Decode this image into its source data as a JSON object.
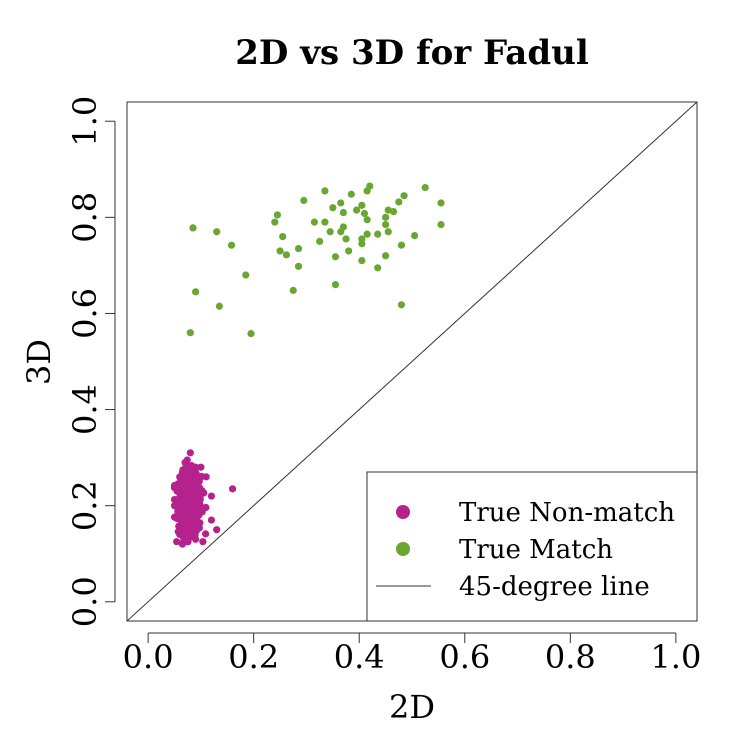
{
  "chart_data": {
    "type": "scatter",
    "title": "2D vs 3D for Fadul",
    "xlabel": "2D",
    "ylabel": "3D",
    "xlim": [
      -0.04,
      1.04
    ],
    "ylim": [
      -0.04,
      1.04
    ],
    "xticks": [
      0.0,
      0.2,
      0.4,
      0.6,
      0.8,
      1.0
    ],
    "yticks": [
      0.0,
      0.2,
      0.4,
      0.6,
      0.8,
      1.0
    ],
    "xtick_labels": [
      "0.0",
      "0.2",
      "0.4",
      "0.6",
      "0.8",
      "1.0"
    ],
    "ytick_labels": [
      "0.0",
      "0.2",
      "0.4",
      "0.6",
      "0.8",
      "1.0"
    ],
    "grid": false,
    "legend_position": "bottom-right",
    "reference_line": {
      "name": "45-degree line",
      "slope": 1,
      "intercept": 0,
      "color": "#333333"
    },
    "series": [
      {
        "name": "True Non-match",
        "color": "#b5228e",
        "cluster_description": "dense cluster of ~500 points",
        "points": [
          [
            0.08,
            0.31
          ],
          [
            0.07,
            0.29
          ],
          [
            0.09,
            0.28
          ],
          [
            0.1,
            0.28
          ],
          [
            0.065,
            0.27
          ],
          [
            0.11,
            0.26
          ],
          [
            0.12,
            0.22
          ],
          [
            0.16,
            0.235
          ],
          [
            0.13,
            0.15
          ],
          [
            0.065,
            0.12
          ],
          [
            0.06,
            0.14
          ],
          [
            0.12,
            0.17
          ],
          [
            0.055,
            0.23
          ],
          [
            0.05,
            0.2
          ],
          [
            0.09,
            0.13
          ],
          [
            0.075,
            0.25
          ],
          [
            0.095,
            0.24
          ],
          [
            0.06,
            0.26
          ]
        ],
        "dense_region": {
          "x_mean": 0.079,
          "x_sd": 0.011,
          "y_mean": 0.205,
          "y_sd": 0.032,
          "count": 480
        }
      },
      {
        "name": "True Match",
        "color": "#6aa632",
        "points": [
          [
            0.42,
            0.865
          ],
          [
            0.335,
            0.855
          ],
          [
            0.415,
            0.855
          ],
          [
            0.525,
            0.862
          ],
          [
            0.485,
            0.845
          ],
          [
            0.385,
            0.848
          ],
          [
            0.555,
            0.83
          ],
          [
            0.295,
            0.835
          ],
          [
            0.365,
            0.83
          ],
          [
            0.475,
            0.832
          ],
          [
            0.405,
            0.825
          ],
          [
            0.35,
            0.82
          ],
          [
            0.395,
            0.815
          ],
          [
            0.455,
            0.815
          ],
          [
            0.465,
            0.812
          ],
          [
            0.37,
            0.81
          ],
          [
            0.41,
            0.808
          ],
          [
            0.245,
            0.805
          ],
          [
            0.45,
            0.8
          ],
          [
            0.24,
            0.79
          ],
          [
            0.315,
            0.79
          ],
          [
            0.335,
            0.79
          ],
          [
            0.415,
            0.795
          ],
          [
            0.45,
            0.785
          ],
          [
            0.555,
            0.785
          ],
          [
            0.085,
            0.778
          ],
          [
            0.37,
            0.78
          ],
          [
            0.455,
            0.77
          ],
          [
            0.13,
            0.77
          ],
          [
            0.345,
            0.77
          ],
          [
            0.365,
            0.77
          ],
          [
            0.415,
            0.765
          ],
          [
            0.435,
            0.765
          ],
          [
            0.505,
            0.762
          ],
          [
            0.255,
            0.76
          ],
          [
            0.375,
            0.755
          ],
          [
            0.405,
            0.755
          ],
          [
            0.325,
            0.75
          ],
          [
            0.405,
            0.745
          ],
          [
            0.48,
            0.742
          ],
          [
            0.158,
            0.742
          ],
          [
            0.285,
            0.735
          ],
          [
            0.25,
            0.73
          ],
          [
            0.38,
            0.73
          ],
          [
            0.262,
            0.722
          ],
          [
            0.45,
            0.72
          ],
          [
            0.355,
            0.718
          ],
          [
            0.405,
            0.71
          ],
          [
            0.285,
            0.698
          ],
          [
            0.435,
            0.695
          ],
          [
            0.185,
            0.68
          ],
          [
            0.355,
            0.66
          ],
          [
            0.275,
            0.648
          ],
          [
            0.09,
            0.645
          ],
          [
            0.48,
            0.618
          ],
          [
            0.135,
            0.615
          ],
          [
            0.08,
            0.56
          ],
          [
            0.195,
            0.558
          ]
        ]
      }
    ]
  }
}
